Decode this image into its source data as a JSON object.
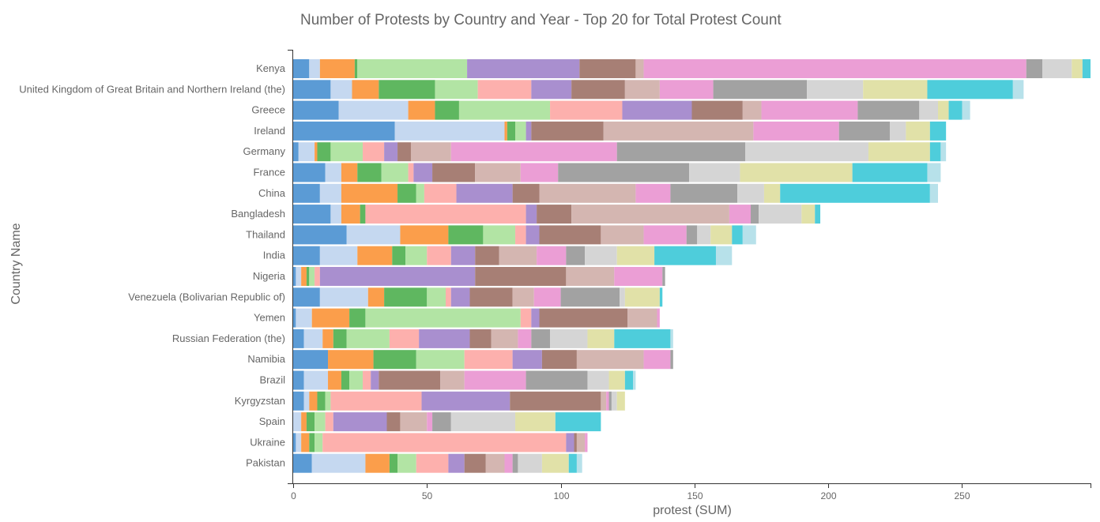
{
  "chart_data": {
    "type": "bar",
    "orientation": "horizontal",
    "stacked": true,
    "title": "Number of Protests by Country and Year - Top 20 for Total Protest Count",
    "xlabel": "protest (SUM)",
    "ylabel": "Country Name",
    "xlim": [
      0,
      298
    ],
    "xticks": [
      "0",
      "50",
      "100",
      "150",
      "200",
      "250"
    ],
    "xtick_values": [
      0,
      50,
      100,
      150,
      200,
      250
    ],
    "grid": false,
    "legend": "none",
    "colors": [
      "#5b9bd5",
      "#c5d8f0",
      "#fb9e4b",
      "#5fb760",
      "#b2e4a4",
      "#fdb0ad",
      "#a98fcf",
      "#a77f75",
      "#d4b6b1",
      "#eb9ed5",
      "#a2a2a2",
      "#d5d5d5",
      "#e1e1a8",
      "#4ecddb",
      "#b7e1ea"
    ],
    "categories": [
      "Kenya",
      "United Kingdom of Great Britain and Northern Ireland (the)",
      "Greece",
      "Ireland",
      "Germany",
      "France",
      "China",
      "Bangladesh",
      "Thailand",
      "India",
      "Nigeria",
      "Venezuela (Bolivarian Republic of)",
      "Yemen",
      "Russian Federation (the)",
      "Namibia",
      "Brazil",
      "Kyrgyzstan",
      "Spain",
      "Ukraine",
      "Pakistan"
    ],
    "segments": [
      [
        6,
        4,
        13,
        1,
        41,
        0,
        42,
        21,
        3,
        143,
        6,
        11,
        4,
        3
      ],
      [
        14,
        8,
        10,
        21,
        16,
        20,
        15,
        20,
        13,
        20,
        35,
        21,
        24,
        32,
        4
      ],
      [
        17,
        26,
        10,
        9,
        34,
        27,
        26,
        19,
        7,
        36,
        23,
        7,
        4,
        5,
        3
      ],
      [
        38,
        41,
        1,
        3,
        4,
        0,
        2,
        27,
        56,
        32,
        19,
        6,
        9,
        6
      ],
      [
        2,
        6,
        1,
        5,
        12,
        8,
        5,
        5,
        15,
        62,
        48,
        46,
        23,
        4,
        2
      ],
      [
        12,
        6,
        6,
        9,
        10,
        2,
        7,
        16,
        17,
        14,
        49,
        19,
        42,
        28,
        5
      ],
      [
        10,
        8,
        21,
        7,
        3,
        12,
        21,
        10,
        36,
        13,
        25,
        10,
        6,
        56,
        3
      ],
      [
        14,
        4,
        7,
        2,
        0,
        60,
        4,
        13,
        59,
        8,
        3,
        16,
        5,
        2
      ],
      [
        20,
        20,
        18,
        13,
        12,
        4,
        5,
        23,
        16,
        16,
        4,
        5,
        8,
        4,
        5
      ],
      [
        10,
        14,
        13,
        5,
        8,
        9,
        9,
        9,
        14,
        11,
        7,
        12,
        14,
        23,
        6
      ],
      [
        1,
        2,
        2,
        1,
        2,
        2,
        58,
        34,
        18,
        18,
        1
      ],
      [
        10,
        18,
        6,
        16,
        7,
        2,
        7,
        16,
        8,
        10,
        22,
        2,
        13,
        1
      ],
      [
        1,
        6,
        14,
        6,
        58,
        4,
        3,
        33,
        11,
        1
      ],
      [
        4,
        7,
        4,
        5,
        16,
        11,
        19,
        8,
        10,
        5,
        7,
        14,
        10,
        21,
        1
      ],
      [
        13,
        0,
        17,
        16,
        18,
        18,
        11,
        13,
        25,
        10,
        1
      ],
      [
        4,
        9,
        5,
        3,
        5,
        3,
        3,
        23,
        9,
        23,
        23,
        8,
        6,
        3,
        1
      ],
      [
        4,
        2,
        3,
        3,
        2,
        34,
        33,
        34,
        2,
        1,
        1,
        2,
        3
      ],
      [
        0,
        3,
        2,
        3,
        4,
        3,
        20,
        5,
        10,
        2,
        7,
        24,
        15,
        17
      ],
      [
        1,
        2,
        3,
        2,
        3,
        91,
        3,
        1,
        3,
        1
      ],
      [
        7,
        20,
        9,
        3,
        7,
        12,
        6,
        8,
        7,
        3,
        2,
        9,
        10,
        3,
        2
      ]
    ]
  }
}
